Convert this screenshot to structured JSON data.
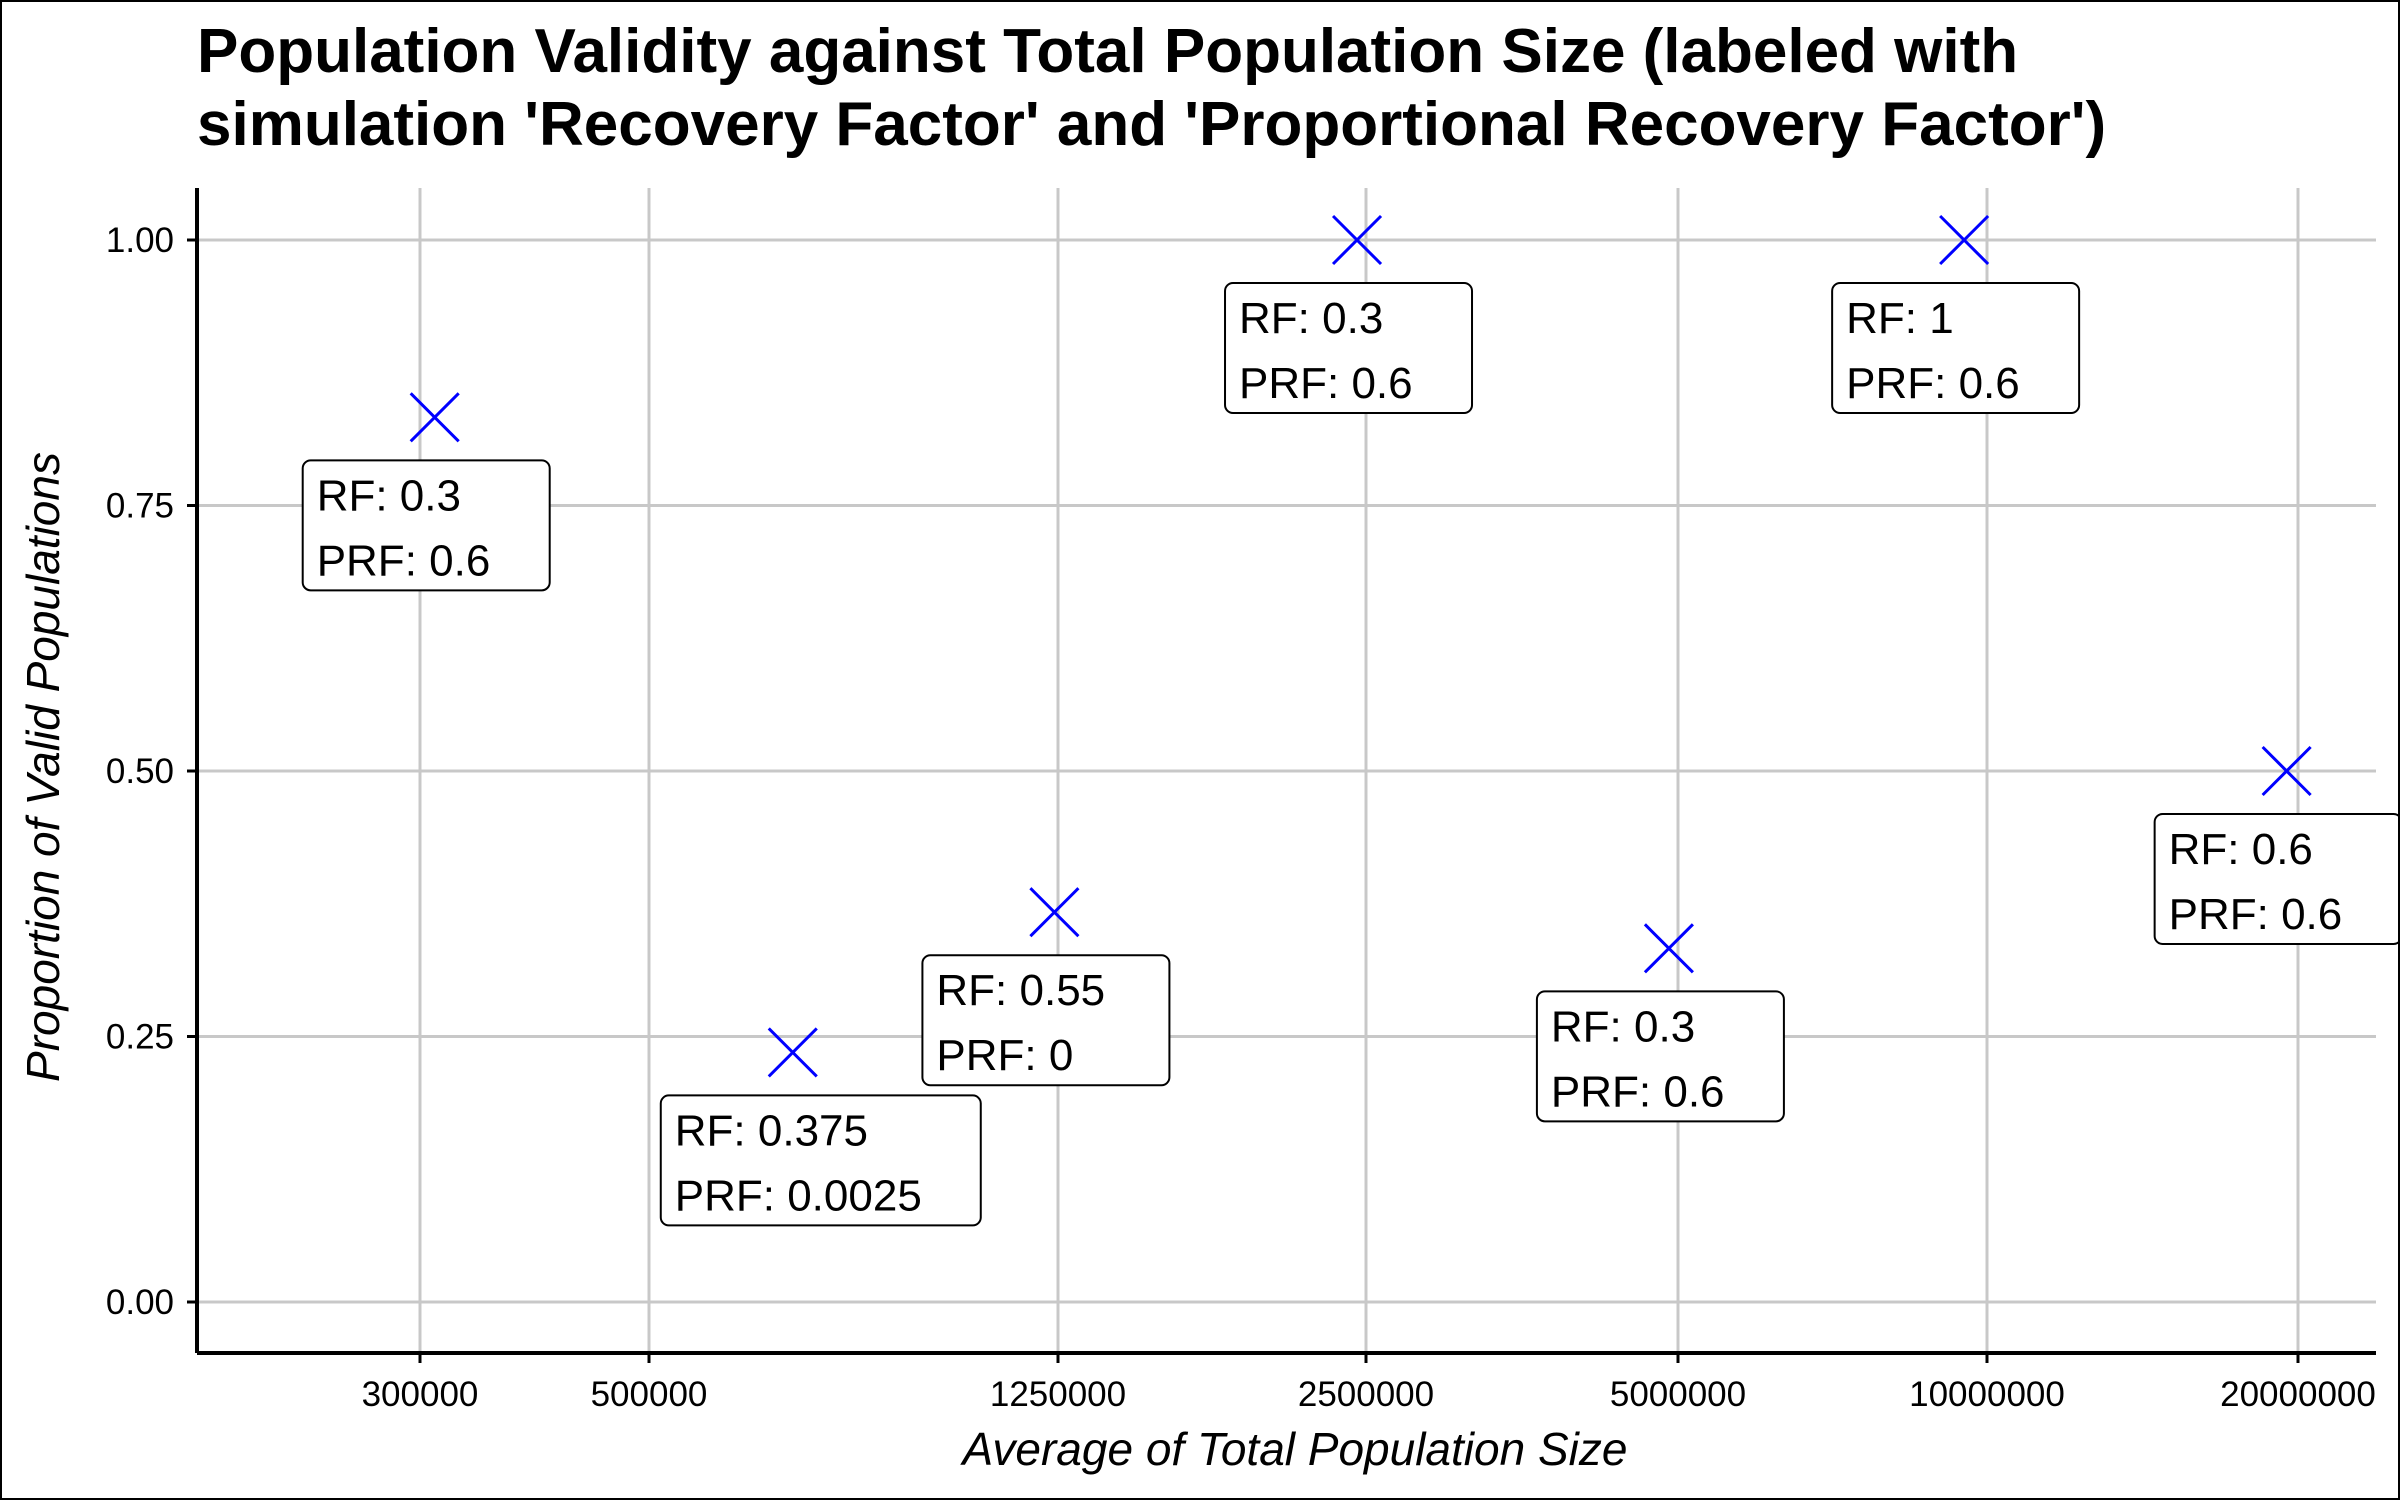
{
  "chart_data": {
    "type": "scatter",
    "title": "Population Validity against Total Population Size (labeled with simulation 'Recovery Factor' and 'Proportional Recovery Factor')",
    "title_lines": [
      "Population Validity against Total Population Size (labeled with",
      "simulation 'Recovery Factor' and 'Proportional Recovery Factor')"
    ],
    "xlabel": "Average of Total Population Size",
    "ylabel": "Proportion of Valid Populations",
    "x_scale": "log",
    "x_ticks": [
      300000,
      500000,
      1250000,
      2500000,
      5000000,
      10000000,
      20000000
    ],
    "x_tick_labels": [
      "300000",
      "500000",
      "1250000",
      "2500000",
      "5000000",
      "10000000",
      "20000000"
    ],
    "y_ticks": [
      0,
      0.25,
      0.5,
      0.75,
      1.0
    ],
    "y_tick_labels": [
      "0.00",
      "0.25",
      "0.50",
      "0.75",
      "1.00"
    ],
    "ylim": [
      -0.05,
      1.05
    ],
    "grid": true,
    "marker": "x",
    "marker_color": "#0000ff",
    "points": [
      {
        "x": 310000,
        "y": 0.833,
        "label_lines": [
          "RF:  0.3",
          "PRF:  0.6"
        ]
      },
      {
        "x": 690000,
        "y": 0.235,
        "label_lines": [
          "RF:  0.375",
          "PRF:  0.0025"
        ]
      },
      {
        "x": 1240000,
        "y": 0.367,
        "label_lines": [
          "RF:  0.55",
          "PRF:  0"
        ]
      },
      {
        "x": 2450000,
        "y": 1.0,
        "label_lines": [
          "RF:  0.3",
          "PRF:  0.6"
        ]
      },
      {
        "x": 4900000,
        "y": 0.333,
        "label_lines": [
          "RF:  0.3",
          "PRF:  0.6"
        ]
      },
      {
        "x": 9500000,
        "y": 1.0,
        "label_lines": [
          "RF:  1",
          "PRF:  0.6"
        ]
      },
      {
        "x": 19500000,
        "y": 0.5,
        "label_lines": [
          "RF:  0.6",
          "PRF:  0.6"
        ]
      }
    ]
  }
}
